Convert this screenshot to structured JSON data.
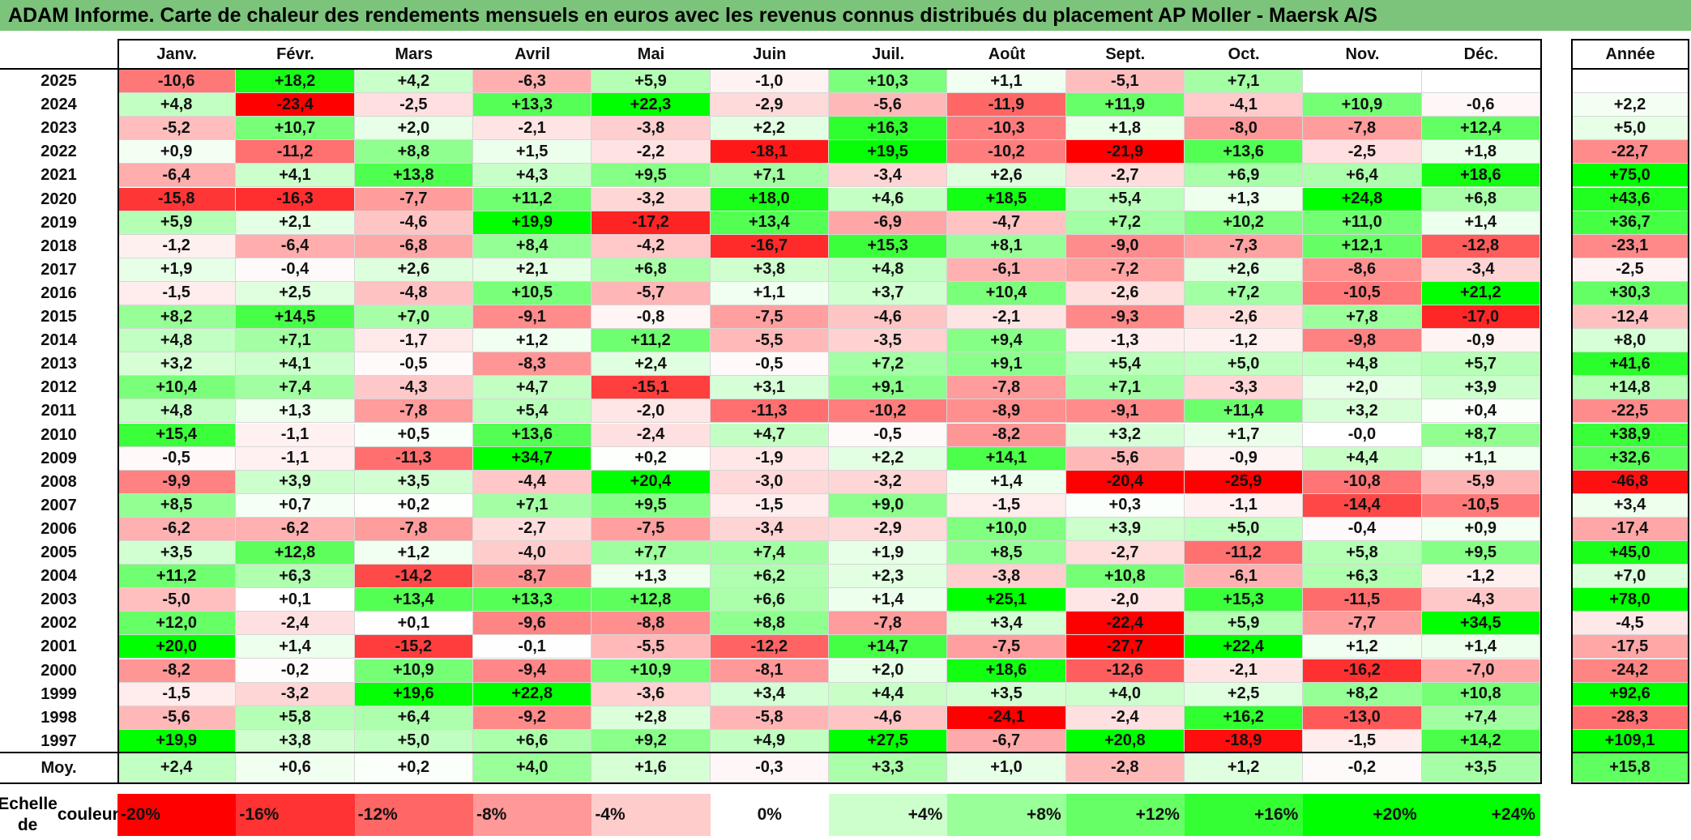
{
  "title": "ADAM Informe. Carte de chaleur des rendements mensuels en euros avec les revenus connus distribués du placement AP Moller - Maersk A/S",
  "chart_data": {
    "type": "heatmap",
    "title": "ADAM Informe. Carte de chaleur des rendements mensuels en euros avec les revenus connus distribués du placement AP Moller - Maersk A/S",
    "columns": [
      "Janv.",
      "Févr.",
      "Mars",
      "Avril",
      "Mai",
      "Juin",
      "Juil.",
      "Août",
      "Sept.",
      "Oct.",
      "Nov.",
      "Déc."
    ],
    "year_column_label": "Année",
    "rows": [
      {
        "year": "2025",
        "months": [
          "-10,6",
          "+18,2",
          "+4,2",
          "-6,3",
          "+5,9",
          "-1,0",
          "+10,3",
          "+1,1",
          "-5,1",
          "+7,1",
          "",
          ""
        ],
        "annual": ""
      },
      {
        "year": "2024",
        "months": [
          "+4,8",
          "-23,4",
          "-2,5",
          "+13,3",
          "+22,3",
          "-2,9",
          "-5,6",
          "-11,9",
          "+11,9",
          "-4,1",
          "+10,9",
          "-0,6"
        ],
        "annual": "+2,2"
      },
      {
        "year": "2023",
        "months": [
          "-5,2",
          "+10,7",
          "+2,0",
          "-2,1",
          "-3,8",
          "+2,2",
          "+16,3",
          "-10,3",
          "+1,8",
          "-8,0",
          "-7,8",
          "+12,4"
        ],
        "annual": "+5,0"
      },
      {
        "year": "2022",
        "months": [
          "+0,9",
          "-11,2",
          "+8,8",
          "+1,5",
          "-2,2",
          "-18,1",
          "+19,5",
          "-10,2",
          "-21,9",
          "+13,6",
          "-2,5",
          "+1,8"
        ],
        "annual": "-22,7"
      },
      {
        "year": "2021",
        "months": [
          "-6,4",
          "+4,1",
          "+13,8",
          "+4,3",
          "+9,5",
          "+7,1",
          "-3,4",
          "+2,6",
          "-2,7",
          "+6,9",
          "+6,4",
          "+18,6"
        ],
        "annual": "+75,0"
      },
      {
        "year": "2020",
        "months": [
          "-15,8",
          "-16,3",
          "-7,7",
          "+11,2",
          "-3,2",
          "+18,0",
          "+4,6",
          "+18,5",
          "+5,4",
          "+1,3",
          "+24,8",
          "+6,8"
        ],
        "annual": "+43,6"
      },
      {
        "year": "2019",
        "months": [
          "+5,9",
          "+2,1",
          "-4,6",
          "+19,9",
          "-17,2",
          "+13,4",
          "-6,9",
          "-4,7",
          "+7,2",
          "+10,2",
          "+11,0",
          "+1,4"
        ],
        "annual": "+36,7"
      },
      {
        "year": "2018",
        "months": [
          "-1,2",
          "-6,4",
          "-6,8",
          "+8,4",
          "-4,2",
          "-16,7",
          "+15,3",
          "+8,1",
          "-9,0",
          "-7,3",
          "+12,1",
          "-12,8"
        ],
        "annual": "-23,1"
      },
      {
        "year": "2017",
        "months": [
          "+1,9",
          "-0,4",
          "+2,6",
          "+2,1",
          "+6,8",
          "+3,8",
          "+4,8",
          "-6,1",
          "-7,2",
          "+2,6",
          "-8,6",
          "-3,4"
        ],
        "annual": "-2,5"
      },
      {
        "year": "2016",
        "months": [
          "-1,5",
          "+2,5",
          "-4,8",
          "+10,5",
          "-5,7",
          "+1,1",
          "+3,7",
          "+10,4",
          "-2,6",
          "+7,2",
          "-10,5",
          "+21,2"
        ],
        "annual": "+30,3"
      },
      {
        "year": "2015",
        "months": [
          "+8,2",
          "+14,5",
          "+7,0",
          "-9,1",
          "-0,8",
          "-7,5",
          "-4,6",
          "-2,1",
          "-9,3",
          "-2,6",
          "+7,8",
          "-17,0"
        ],
        "annual": "-12,4"
      },
      {
        "year": "2014",
        "months": [
          "+4,8",
          "+7,1",
          "-1,7",
          "+1,2",
          "+11,2",
          "-5,5",
          "-3,5",
          "+9,4",
          "-1,3",
          "-1,2",
          "-9,8",
          "-0,9"
        ],
        "annual": "+8,0"
      },
      {
        "year": "2013",
        "months": [
          "+3,2",
          "+4,1",
          "-0,5",
          "-8,3",
          "+2,4",
          "-0,5",
          "+7,2",
          "+9,1",
          "+5,4",
          "+5,0",
          "+4,8",
          "+5,7"
        ],
        "annual": "+41,6"
      },
      {
        "year": "2012",
        "months": [
          "+10,4",
          "+7,4",
          "-4,3",
          "+4,7",
          "-15,1",
          "+3,1",
          "+9,1",
          "-7,8",
          "+7,1",
          "-3,3",
          "+2,0",
          "+3,9"
        ],
        "annual": "+14,8"
      },
      {
        "year": "2011",
        "months": [
          "+4,8",
          "+1,3",
          "-7,8",
          "+5,4",
          "-2,0",
          "-11,3",
          "-10,2",
          "-8,9",
          "-9,1",
          "+11,4",
          "+3,2",
          "+0,4"
        ],
        "annual": "-22,5"
      },
      {
        "year": "2010",
        "months": [
          "+15,4",
          "-1,1",
          "+0,5",
          "+13,6",
          "-2,4",
          "+4,7",
          "-0,5",
          "-8,2",
          "+3,2",
          "+1,7",
          "-0,0",
          "+8,7"
        ],
        "annual": "+38,9"
      },
      {
        "year": "2009",
        "months": [
          "-0,5",
          "-1,1",
          "-11,3",
          "+34,7",
          "+0,2",
          "-1,9",
          "+2,2",
          "+14,1",
          "-5,6",
          "-0,9",
          "+4,4",
          "+1,1"
        ],
        "annual": "+32,6"
      },
      {
        "year": "2008",
        "months": [
          "-9,9",
          "+3,9",
          "+3,5",
          "-4,4",
          "+20,4",
          "-3,0",
          "-3,2",
          "+1,4",
          "-20,4",
          "-25,9",
          "-10,8",
          "-5,9"
        ],
        "annual": "-46,8"
      },
      {
        "year": "2007",
        "months": [
          "+8,5",
          "+0,7",
          "+0,2",
          "+7,1",
          "+9,5",
          "-1,5",
          "+9,0",
          "-1,5",
          "+0,3",
          "-1,1",
          "-14,4",
          "-10,5"
        ],
        "annual": "+3,4"
      },
      {
        "year": "2006",
        "months": [
          "-6,2",
          "-6,2",
          "-7,8",
          "-2,7",
          "-7,5",
          "-3,4",
          "-2,9",
          "+10,0",
          "+3,9",
          "+5,0",
          "-0,4",
          "+0,9"
        ],
        "annual": "-17,4"
      },
      {
        "year": "2005",
        "months": [
          "+3,5",
          "+12,8",
          "+1,2",
          "-4,0",
          "+7,7",
          "+7,4",
          "+1,9",
          "+8,5",
          "-2,7",
          "-11,2",
          "+5,8",
          "+9,5"
        ],
        "annual": "+45,0"
      },
      {
        "year": "2004",
        "months": [
          "+11,2",
          "+6,3",
          "-14,2",
          "-8,7",
          "+1,3",
          "+6,2",
          "+2,3",
          "-3,8",
          "+10,8",
          "-6,1",
          "+6,3",
          "-1,2"
        ],
        "annual": "+7,0"
      },
      {
        "year": "2003",
        "months": [
          "-5,0",
          "+0,1",
          "+13,4",
          "+13,3",
          "+12,8",
          "+6,6",
          "+1,4",
          "+25,1",
          "-2,0",
          "+15,3",
          "-11,5",
          "-4,3"
        ],
        "annual": "+78,0"
      },
      {
        "year": "2002",
        "months": [
          "+12,0",
          "-2,4",
          "+0,1",
          "-9,6",
          "-8,8",
          "+8,8",
          "-7,8",
          "+3,4",
          "-22,4",
          "+5,9",
          "-7,7",
          "+34,5"
        ],
        "annual": "-4,5"
      },
      {
        "year": "2001",
        "months": [
          "+20,0",
          "+1,4",
          "-15,2",
          "-0,1",
          "-5,5",
          "-12,2",
          "+14,7",
          "-7,5",
          "-27,7",
          "+22,4",
          "+1,2",
          "+1,4"
        ],
        "annual": "-17,5"
      },
      {
        "year": "2000",
        "months": [
          "-8,2",
          "-0,2",
          "+10,9",
          "-9,4",
          "+10,9",
          "-8,1",
          "+2,0",
          "+18,6",
          "-12,6",
          "-2,1",
          "-16,2",
          "-7,0"
        ],
        "annual": "-24,2"
      },
      {
        "year": "1999",
        "months": [
          "-1,5",
          "-3,2",
          "+19,6",
          "+22,8",
          "-3,6",
          "+3,4",
          "+4,4",
          "+3,5",
          "+4,0",
          "+2,5",
          "+8,2",
          "+10,8"
        ],
        "annual": "+92,6"
      },
      {
        "year": "1998",
        "months": [
          "-5,6",
          "+5,8",
          "+6,4",
          "-9,2",
          "+2,8",
          "-5,8",
          "-4,6",
          "-24,1",
          "-2,4",
          "+16,2",
          "-13,0",
          "+7,4"
        ],
        "annual": "-28,3"
      },
      {
        "year": "1997",
        "months": [
          "+19,9",
          "+3,8",
          "+5,0",
          "+6,6",
          "+9,2",
          "+4,9",
          "+27,5",
          "-6,7",
          "+20,8",
          "-18,9",
          "-1,5",
          "+14,2"
        ],
        "annual": "+109,1"
      }
    ],
    "average": {
      "label": "Moy.",
      "months": [
        "+2,4",
        "+0,6",
        "+0,2",
        "+4,0",
        "+1,6",
        "-0,3",
        "+3,3",
        "+1,0",
        "-2,8",
        "+1,2",
        "-0,2",
        "+3,5"
      ],
      "annual": "+15,8"
    },
    "scale": {
      "label_line1": "Echelle de",
      "label_line2": "couleur",
      "items": [
        {
          "label": "-20%",
          "value": -20
        },
        {
          "label": "-16%",
          "value": -16
        },
        {
          "label": "-12%",
          "value": -12
        },
        {
          "label": "-8%",
          "value": -8
        },
        {
          "label": "-4%",
          "value": -4
        },
        {
          "label": "0%",
          "value": 0
        },
        {
          "label": "+4%",
          "value": 4
        },
        {
          "label": "+8%",
          "value": 8
        },
        {
          "label": "+12%",
          "value": 12
        },
        {
          "label": "+16%",
          "value": 16
        },
        {
          "label": "+20%",
          "value": 20
        },
        {
          "label": "+24%",
          "value": 24
        }
      ]
    },
    "colors": {
      "negative": "#ff0000",
      "neutral": "#ffffff",
      "positive": "#00ff00",
      "title_bar": "#7cc47b"
    }
  }
}
